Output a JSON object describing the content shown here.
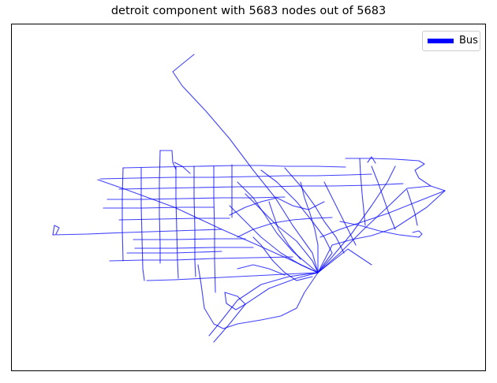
{
  "title": "detroit component with 5683 nodes out of 5683",
  "legend": {
    "label": "Bus",
    "color": "#0000ff"
  },
  "network": {
    "edge_color": "#0000ff",
    "edge_opacity": 0.75
  }
}
